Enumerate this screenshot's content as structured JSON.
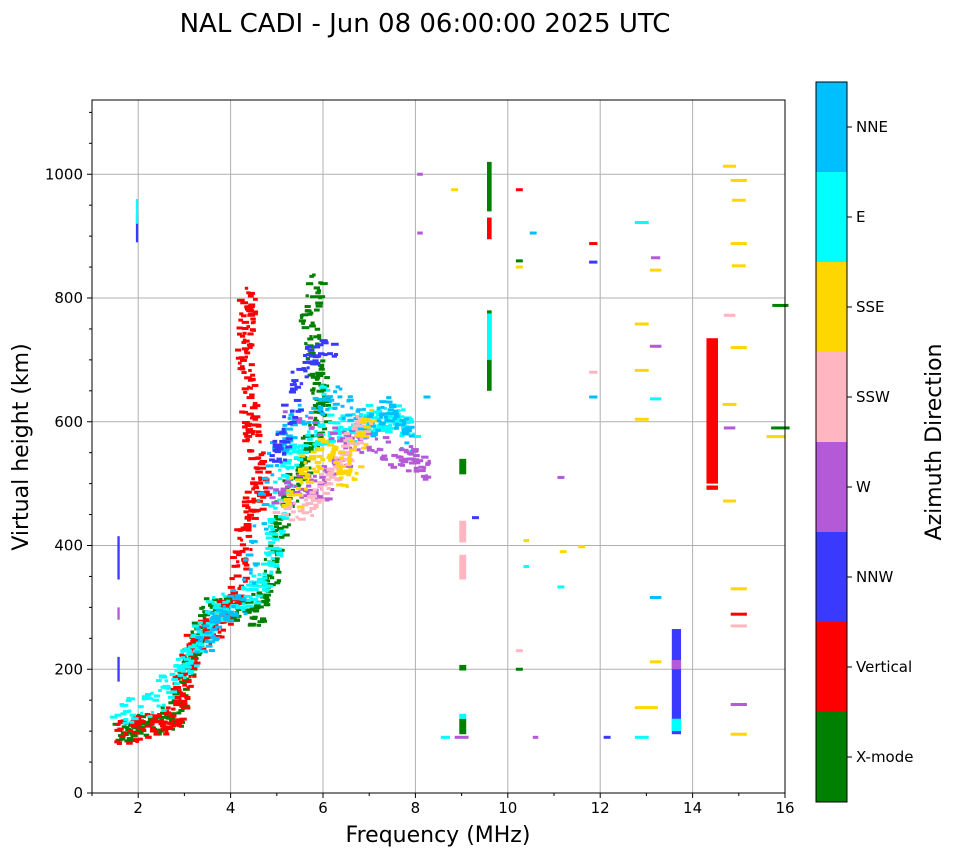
{
  "chart_data": {
    "type": "scatter",
    "title": "NAL CADI - Jun 08 06:00:00 2025 UTC",
    "xlabel": "Frequency (MHz)",
    "ylabel": "Virtual height (km)",
    "xlim": [
      1,
      16
    ],
    "ylim": [
      0,
      1120
    ],
    "xticks": [
      2,
      4,
      6,
      8,
      10,
      12,
      14,
      16
    ],
    "yticks": [
      0,
      200,
      400,
      600,
      800,
      1000
    ],
    "grid": true,
    "colorbar": {
      "title": "Azimuth Direction",
      "categories": [
        {
          "name": "X-mode",
          "color": "#008000"
        },
        {
          "name": "Vertical",
          "color": "#ff0000"
        },
        {
          "name": "NNW",
          "color": "#3a3aff"
        },
        {
          "name": "W",
          "color": "#b45ad6"
        },
        {
          "name": "SSW",
          "color": "#ffb6c1"
        },
        {
          "name": "SSE",
          "color": "#ffd700"
        },
        {
          "name": "E",
          "color": "#00ffff"
        },
        {
          "name": "NNE",
          "color": "#00bfff"
        }
      ]
    },
    "blocks": [
      {
        "name": "Vertical",
        "f": [
          14.3,
          14.55
        ],
        "h": [
          500,
          735
        ]
      },
      {
        "name": "Vertical",
        "f": [
          14.3,
          14.55
        ],
        "h": [
          490,
          497
        ]
      },
      {
        "name": "X-mode",
        "f": [
          9.55,
          9.65
        ],
        "h": [
          650,
          780
        ]
      },
      {
        "name": "E",
        "f": [
          9.55,
          9.65
        ],
        "h": [
          700,
          775
        ]
      },
      {
        "name": "X-mode",
        "f": [
          9.55,
          9.65
        ],
        "h": [
          940,
          1020
        ]
      },
      {
        "name": "Vertical",
        "f": [
          9.55,
          9.65
        ],
        "h": [
          895,
          930
        ]
      },
      {
        "name": "NNW",
        "f": [
          13.55,
          13.75
        ],
        "h": [
          95,
          265
        ]
      },
      {
        "name": "E",
        "f": [
          13.55,
          13.75
        ],
        "h": [
          100,
          120
        ]
      },
      {
        "name": "W",
        "f": [
          13.55,
          13.75
        ],
        "h": [
          200,
          215
        ]
      },
      {
        "name": "X-mode",
        "f": [
          8.95,
          9.1
        ],
        "h": [
          95,
          120
        ]
      },
      {
        "name": "E",
        "f": [
          8.95,
          9.1
        ],
        "h": [
          120,
          128
        ]
      },
      {
        "name": "X-mode",
        "f": [
          8.95,
          9.1
        ],
        "h": [
          198,
          207
        ]
      },
      {
        "name": "X-mode",
        "f": [
          8.95,
          9.1
        ],
        "h": [
          515,
          540
        ]
      },
      {
        "name": "SSW",
        "f": [
          8.95,
          9.1
        ],
        "h": [
          345,
          385
        ]
      },
      {
        "name": "SSW",
        "f": [
          8.95,
          9.1
        ],
        "h": [
          405,
          440
        ]
      },
      {
        "name": "NNW",
        "f": [
          1.55,
          1.6
        ],
        "h": [
          345,
          415
        ]
      },
      {
        "name": "NNW",
        "f": [
          1.55,
          1.6
        ],
        "h": [
          180,
          220
        ]
      },
      {
        "name": "W",
        "f": [
          1.55,
          1.6
        ],
        "h": [
          280,
          300
        ]
      },
      {
        "name": "NNW",
        "f": [
          1.95,
          2.0
        ],
        "h": [
          890,
          935
        ]
      },
      {
        "name": "E",
        "f": [
          1.95,
          2.0
        ],
        "h": [
          920,
          960
        ]
      }
    ],
    "traces": [
      {
        "name": "X-mode",
        "points": [
          [
            1.6,
            95
          ],
          [
            2.0,
            105
          ],
          [
            2.5,
            115
          ],
          [
            2.85,
            130
          ],
          [
            3.1,
            210
          ],
          [
            3.3,
            260
          ],
          [
            3.6,
            295
          ],
          [
            4.0,
            300
          ],
          [
            4.5,
            285
          ],
          [
            4.8,
            330
          ],
          [
            5.0,
            390
          ],
          [
            5.2,
            470
          ],
          [
            5.5,
            520
          ],
          [
            5.8,
            570
          ],
          [
            6.0,
            620
          ],
          [
            5.9,
            680
          ],
          [
            5.7,
            760
          ],
          [
            5.9,
            830
          ]
        ]
      },
      {
        "name": "Vertical",
        "points": [
          [
            1.6,
            95
          ],
          [
            2.0,
            105
          ],
          [
            2.5,
            110
          ],
          [
            2.85,
            125
          ],
          [
            2.95,
            170
          ],
          [
            3.1,
            220
          ],
          [
            3.4,
            260
          ],
          [
            3.7,
            270
          ],
          [
            4.0,
            300
          ],
          [
            4.2,
            340
          ],
          [
            4.3,
            420
          ],
          [
            4.5,
            470
          ],
          [
            4.7,
            500
          ],
          [
            4.5,
            560
          ],
          [
            4.4,
            620
          ],
          [
            4.3,
            700
          ],
          [
            4.35,
            760
          ],
          [
            4.4,
            800
          ]
        ]
      },
      {
        "name": "E",
        "points": [
          [
            1.6,
            130
          ],
          [
            2.3,
            140
          ],
          [
            2.9,
            200
          ],
          [
            3.2,
            230
          ],
          [
            3.5,
            275
          ],
          [
            3.8,
            300
          ],
          [
            4.5,
            320
          ],
          [
            4.9,
            360
          ],
          [
            5.0,
            420
          ],
          [
            5.2,
            540
          ],
          [
            5.6,
            560
          ],
          [
            6.2,
            580
          ],
          [
            6.8,
            590
          ],
          [
            7.2,
            600
          ],
          [
            7.6,
            610
          ],
          [
            7.9,
            590
          ],
          [
            5.8,
            640
          ]
        ]
      },
      {
        "name": "NNE",
        "points": [
          [
            3.4,
            240
          ],
          [
            3.7,
            280
          ],
          [
            4.2,
            310
          ],
          [
            5.0,
            560
          ],
          [
            5.5,
            600
          ],
          [
            6.3,
            640
          ],
          [
            7.0,
            590
          ],
          [
            7.5,
            620
          ],
          [
            7.9,
            570
          ]
        ]
      },
      {
        "name": "W",
        "points": [
          [
            4.9,
            480
          ],
          [
            5.6,
            500
          ],
          [
            6.0,
            490
          ],
          [
            6.6,
            570
          ],
          [
            7.9,
            540
          ],
          [
            8.2,
            525
          ],
          [
            5.2,
            620
          ]
        ]
      },
      {
        "name": "SSW",
        "points": [
          [
            5.1,
            450
          ],
          [
            5.8,
            470
          ],
          [
            6.3,
            520
          ],
          [
            6.6,
            560
          ],
          [
            7.0,
            610
          ]
        ]
      },
      {
        "name": "SSE",
        "points": [
          [
            5.3,
            470
          ],
          [
            5.6,
            520
          ],
          [
            6.2,
            560
          ],
          [
            6.6,
            500
          ],
          [
            7.0,
            620
          ]
        ]
      },
      {
        "name": "NNW",
        "points": [
          [
            4.9,
            540
          ],
          [
            5.2,
            580
          ],
          [
            5.6,
            700
          ],
          [
            6.2,
            715
          ]
        ]
      }
    ],
    "segments": [
      {
        "name": "SSE",
        "f": 14.8,
        "h": 1013,
        "w": 0.28
      },
      {
        "name": "SSE",
        "f": 15.0,
        "h": 990,
        "w": 0.35
      },
      {
        "name": "SSE",
        "f": 15.0,
        "h": 958,
        "w": 0.3
      },
      {
        "name": "SSE",
        "f": 15.0,
        "h": 888,
        "w": 0.35
      },
      {
        "name": "SSE",
        "f": 15.0,
        "h": 852,
        "w": 0.3
      },
      {
        "name": "X-mode",
        "f": 15.9,
        "h": 788,
        "w": 0.35
      },
      {
        "name": "SSW",
        "f": 14.8,
        "h": 772,
        "w": 0.25
      },
      {
        "name": "SSE",
        "f": 15.0,
        "h": 720,
        "w": 0.35
      },
      {
        "name": "SSE",
        "f": 14.8,
        "h": 628,
        "w": 0.3
      },
      {
        "name": "W",
        "f": 14.8,
        "h": 590,
        "w": 0.25
      },
      {
        "name": "X-mode",
        "f": 15.9,
        "h": 590,
        "w": 0.4
      },
      {
        "name": "SSE",
        "f": 15.8,
        "h": 576,
        "w": 0.4
      },
      {
        "name": "SSE",
        "f": 14.8,
        "h": 472,
        "w": 0.28
      },
      {
        "name": "SSE",
        "f": 15.0,
        "h": 330,
        "w": 0.35
      },
      {
        "name": "Vertical",
        "f": 15.0,
        "h": 289,
        "w": 0.35
      },
      {
        "name": "SSW",
        "f": 15.0,
        "h": 270,
        "w": 0.35
      },
      {
        "name": "W",
        "f": 15.0,
        "h": 143,
        "w": 0.35
      },
      {
        "name": "SSE",
        "f": 15.0,
        "h": 95,
        "w": 0.35
      },
      {
        "name": "E",
        "f": 12.9,
        "h": 922,
        "w": 0.3
      },
      {
        "name": "W",
        "f": 13.2,
        "h": 865,
        "w": 0.2
      },
      {
        "name": "SSE",
        "f": 13.2,
        "h": 845,
        "w": 0.25
      },
      {
        "name": "SSE",
        "f": 12.9,
        "h": 758,
        "w": 0.3
      },
      {
        "name": "W",
        "f": 13.2,
        "h": 722,
        "w": 0.25
      },
      {
        "name": "SSE",
        "f": 12.9,
        "h": 683,
        "w": 0.3
      },
      {
        "name": "E",
        "f": 13.2,
        "h": 637,
        "w": 0.25
      },
      {
        "name": "SSE",
        "f": 12.9,
        "h": 604,
        "w": 0.3
      },
      {
        "name": "NNE",
        "f": 13.2,
        "h": 316,
        "w": 0.25
      },
      {
        "name": "SSE",
        "f": 13.2,
        "h": 212,
        "w": 0.25
      },
      {
        "name": "SSE",
        "f": 13.0,
        "h": 138,
        "w": 0.5
      },
      {
        "name": "E",
        "f": 12.9,
        "h": 90,
        "w": 0.3
      },
      {
        "name": "Vertical",
        "f": 11.85,
        "h": 888,
        "w": 0.18
      },
      {
        "name": "NNW",
        "f": 11.85,
        "h": 858,
        "w": 0.18
      },
      {
        "name": "SSW",
        "f": 11.85,
        "h": 680,
        "w": 0.18
      },
      {
        "name": "NNE",
        "f": 11.85,
        "h": 640,
        "w": 0.18
      },
      {
        "name": "SSE",
        "f": 11.6,
        "h": 398,
        "w": 0.15
      },
      {
        "name": "NNW",
        "f": 12.15,
        "h": 90,
        "w": 0.15
      },
      {
        "name": "SSE",
        "f": 11.2,
        "h": 390,
        "w": 0.15
      },
      {
        "name": "E",
        "f": 11.15,
        "h": 333,
        "w": 0.15
      },
      {
        "name": "W",
        "f": 11.15,
        "h": 510,
        "w": 0.15
      },
      {
        "name": "NNE",
        "f": 10.55,
        "h": 905,
        "w": 0.15
      },
      {
        "name": "Vertical",
        "f": 10.25,
        "h": 975,
        "w": 0.15
      },
      {
        "name": "X-mode",
        "f": 10.25,
        "h": 860,
        "w": 0.15
      },
      {
        "name": "SSE",
        "f": 10.25,
        "h": 850,
        "w": 0.15
      },
      {
        "name": "SSW",
        "f": 10.25,
        "h": 230,
        "w": 0.15
      },
      {
        "name": "X-mode",
        "f": 10.25,
        "h": 200,
        "w": 0.15
      },
      {
        "name": "SSE",
        "f": 10.4,
        "h": 408,
        "w": 0.12
      },
      {
        "name": "E",
        "f": 10.4,
        "h": 366,
        "w": 0.12
      },
      {
        "name": "W",
        "f": 10.6,
        "h": 90,
        "w": 0.12
      },
      {
        "name": "W",
        "f": 8.1,
        "h": 1000,
        "w": 0.12
      },
      {
        "name": "W",
        "f": 8.1,
        "h": 905,
        "w": 0.12
      },
      {
        "name": "NNE",
        "f": 8.25,
        "h": 640,
        "w": 0.15
      },
      {
        "name": "E",
        "f": 8.65,
        "h": 90,
        "w": 0.2
      },
      {
        "name": "SSE",
        "f": 8.85,
        "h": 975,
        "w": 0.15
      },
      {
        "name": "NNW",
        "f": 9.3,
        "h": 445,
        "w": 0.15
      },
      {
        "name": "W",
        "f": 9.0,
        "h": 90,
        "w": 0.3
      }
    ]
  }
}
